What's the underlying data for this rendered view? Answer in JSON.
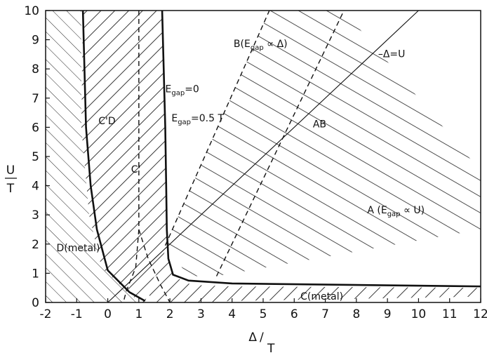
{
  "chart_data": {
    "type": "area",
    "title": "",
    "xlabel": {
      "num": "Δ",
      "den": "T"
    },
    "ylabel": {
      "num": "U",
      "den": "T"
    },
    "xlim": [
      -2,
      12
    ],
    "ylim": [
      0,
      10
    ],
    "x_ticks": [
      -2,
      -1,
      0,
      1,
      2,
      3,
      4,
      5,
      6,
      7,
      8,
      9,
      10,
      11,
      12
    ],
    "y_ticks": [
      0,
      1,
      2,
      3,
      4,
      5,
      6,
      7,
      8,
      9,
      10
    ],
    "x_tick_labels": [
      "-2",
      "-1",
      "0",
      "1",
      "2",
      "3",
      "4",
      "5",
      "6",
      "7",
      "8",
      "9",
      "10",
      "11",
      "12"
    ],
    "y_tick_labels": [
      "0",
      "1",
      "2",
      "3",
      "4",
      "5",
      "6",
      "7",
      "8",
      "9",
      "10"
    ],
    "regions": [
      {
        "name": "D(metal)",
        "hatch": "backslash",
        "polygon": [
          [
            -2,
            0
          ],
          [
            1.05,
            0
          ],
          [
            0.6,
            0.4
          ],
          [
            -0.2,
            1.2
          ],
          [
            -0.6,
            3
          ],
          [
            -0.85,
            6
          ],
          [
            -0.85,
            10
          ],
          [
            -2,
            10
          ]
        ]
      },
      {
        "name": "C'D",
        "hatch": "slash",
        "polygon": [
          [
            -0.8,
            10
          ],
          [
            1.75,
            10
          ],
          [
            1.9,
            1.9
          ],
          [
            1.3,
            0.4
          ],
          [
            1.2,
            0
          ],
          [
            1.05,
            0
          ],
          [
            0.6,
            0.4
          ],
          [
            -0.2,
            1.2
          ],
          [
            -0.6,
            3
          ],
          [
            -0.85,
            6
          ]
        ]
      },
      {
        "name": "C(metal)",
        "hatch": "slash",
        "polygon": [
          [
            1.4,
            0
          ],
          [
            1.3,
            0.4
          ],
          [
            1.9,
            1.7
          ],
          [
            2.1,
            0.9
          ],
          [
            2.7,
            0.6
          ],
          [
            4,
            0.55
          ],
          [
            12,
            0.5
          ],
          [
            12,
            0.2
          ],
          [
            4,
            0.05
          ],
          [
            3,
            0
          ]
        ]
      },
      {
        "name": "AB",
        "hatch": "horizontal",
        "polygon": [
          [
            1.85,
            1.95
          ],
          [
            5.2,
            10
          ],
          [
            7.6,
            10
          ],
          [
            12,
            4.5
          ],
          [
            12,
            2.5
          ],
          [
            3.5,
            0.9
          ],
          [
            2.6,
            0.9
          ],
          [
            2.1,
            1.6
          ]
        ]
      }
    ],
    "lines": [
      {
        "label": "Egap=0",
        "style": "solid-bold",
        "points": [
          [
            1.75,
            10
          ],
          [
            1.8,
            8
          ],
          [
            1.85,
            6
          ],
          [
            1.88,
            4
          ],
          [
            1.9,
            2.5
          ],
          [
            1.95,
            1.5
          ],
          [
            2.1,
            0.95
          ],
          [
            2.6,
            0.75
          ],
          [
            4,
            0.65
          ],
          [
            12,
            0.55
          ]
        ]
      },
      {
        "label": "Egap=0.5T",
        "style": "solid-bold",
        "points": [
          [
            -0.8,
            10
          ],
          [
            -0.75,
            8
          ],
          [
            -0.7,
            6
          ],
          [
            -0.55,
            4
          ],
          [
            -0.35,
            2.5
          ],
          [
            0,
            1.1
          ],
          [
            0.7,
            0.35
          ],
          [
            1.2,
            0.05
          ]
        ]
      },
      {
        "label": "C'",
        "style": "dashed",
        "points": [
          [
            1.0,
            10
          ],
          [
            1.0,
            2.5
          ],
          [
            0.9,
            1.2
          ],
          [
            0.6,
            0.4
          ],
          [
            0.5,
            0
          ]
        ]
      },
      {
        "label": "C'",
        "style": "dashed",
        "points": [
          [
            1.0,
            2.5
          ],
          [
            1.3,
            1.5
          ],
          [
            1.7,
            0.6
          ],
          [
            2.0,
            0
          ]
        ]
      },
      {
        "label": "Δ=U",
        "style": "solid-thin",
        "points": [
          [
            0,
            0
          ],
          [
            10,
            10
          ]
        ]
      },
      {
        "label": "",
        "style": "dashed",
        "points": [
          [
            1.85,
            1.95
          ],
          [
            5.2,
            10
          ]
        ]
      },
      {
        "label": "",
        "style": "dashed",
        "points": [
          [
            3.5,
            0.9
          ],
          [
            7.6,
            10
          ]
        ]
      }
    ],
    "annotations": [
      {
        "text": "B(E",
        "sub": "gap",
        "tail": " ∝ Δ)",
        "x": 4.05,
        "y": 8.75
      },
      {
        "text": "A (E",
        "sub": "gap",
        "tail": " ∝ U)",
        "x": 8.35,
        "y": 3.05
      },
      {
        "text": "AB",
        "x": 6.6,
        "y": 6.0
      },
      {
        "text": "–Δ=U",
        "x": 8.7,
        "y": 8.4
      },
      {
        "text": "E",
        "sub": "gap",
        "tail": "=0",
        "x": 1.85,
        "y": 7.2
      },
      {
        "text": "E",
        "sub": "gap",
        "tail": "=0.5 T",
        "x": 2.05,
        "y": 6.2
      },
      {
        "text": "C'D",
        "x": -0.3,
        "y": 6.1
      },
      {
        "text": "C'",
        "x": 0.75,
        "y": 4.45
      },
      {
        "text": "D(metal)",
        "x": -1.65,
        "y": 1.75
      },
      {
        "text": "C(metal)",
        "x": 6.2,
        "y": 0.1
      }
    ],
    "grid": false,
    "legend": "none"
  }
}
